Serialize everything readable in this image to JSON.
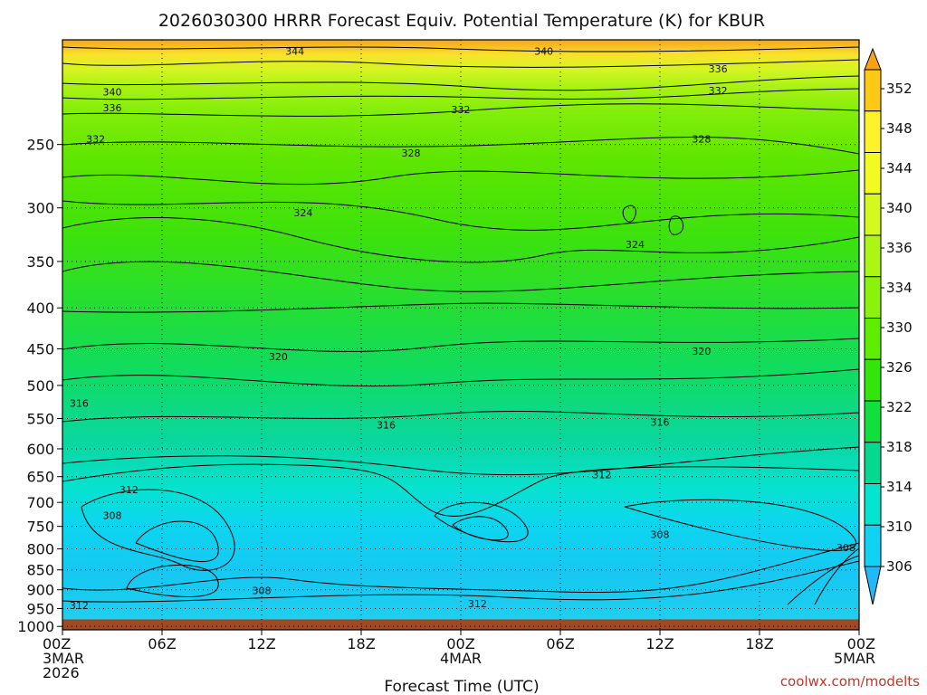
{
  "chart_data": {
    "type": "heatmap",
    "title": "2026030300 HRRR Forecast Equiv. Potential Temperature (K) for KBUR",
    "xlabel": "Forecast Time (UTC)",
    "ylabel": "",
    "credit": "coolwx.com/modelts",
    "x_ticks": [
      {
        "hours": 0,
        "lines": [
          "00Z",
          "3MAR",
          "2026"
        ]
      },
      {
        "hours": 6,
        "lines": [
          "06Z"
        ]
      },
      {
        "hours": 12,
        "lines": [
          "12Z"
        ]
      },
      {
        "hours": 18,
        "lines": [
          "18Z"
        ]
      },
      {
        "hours": 24,
        "lines": [
          "00Z",
          "4MAR"
        ]
      },
      {
        "hours": 30,
        "lines": [
          "06Z"
        ]
      },
      {
        "hours": 36,
        "lines": [
          "12Z"
        ]
      },
      {
        "hours": 42,
        "lines": [
          "18Z"
        ]
      },
      {
        "hours": 48,
        "lines": [
          "00Z",
          "5MAR"
        ]
      }
    ],
    "xlim_hours": [
      0,
      48
    ],
    "y_ticks": [
      "250",
      "300",
      "350",
      "400",
      "450",
      "500",
      "550",
      "600",
      "650",
      "700",
      "750",
      "800",
      "850",
      "900",
      "950",
      "1000"
    ],
    "y_tick_values": [
      250,
      300,
      350,
      400,
      450,
      500,
      550,
      600,
      650,
      700,
      750,
      800,
      850,
      900,
      950,
      1000
    ],
    "ylim_hpa": [
      1010,
      185
    ],
    "ground_level_hpa": 980,
    "colorbar": {
      "labels": [
        "352",
        "348",
        "344",
        "340",
        "336",
        "334",
        "330",
        "326",
        "322",
        "318",
        "314",
        "310",
        "306"
      ],
      "colors": [
        "#f9a218",
        "#fdc816",
        "#fff12b",
        "#f1fb23",
        "#d3f921",
        "#acf515",
        "#8af20b",
        "#5fee00",
        "#32e60b",
        "#11df3b",
        "#05d990",
        "#05e4cf",
        "#0fd2f5",
        "#20bafa"
      ]
    },
    "contour_labels": [
      {
        "text": "344",
        "hours": 14,
        "hpa": 191
      },
      {
        "text": "340",
        "hours": 29,
        "hpa": 191
      },
      {
        "text": "336",
        "hours": 39.5,
        "hpa": 201
      },
      {
        "text": "332",
        "hours": 39.5,
        "hpa": 214
      },
      {
        "text": "340",
        "hours": 3,
        "hpa": 215
      },
      {
        "text": "336",
        "hours": 3,
        "hpa": 225
      },
      {
        "text": "332",
        "hours": 24,
        "hpa": 226
      },
      {
        "text": "332",
        "hours": 2,
        "hpa": 246
      },
      {
        "text": "328",
        "hours": 21,
        "hpa": 256
      },
      {
        "text": "328",
        "hours": 38.5,
        "hpa": 246
      },
      {
        "text": "324",
        "hours": 14.5,
        "hpa": 304
      },
      {
        "text": "324",
        "hours": 34.5,
        "hpa": 333
      },
      {
        "text": "320",
        "hours": 13,
        "hpa": 460
      },
      {
        "text": "320",
        "hours": 38.5,
        "hpa": 453
      },
      {
        "text": "316",
        "hours": 1,
        "hpa": 526
      },
      {
        "text": "316",
        "hours": 19.5,
        "hpa": 560
      },
      {
        "text": "316",
        "hours": 36,
        "hpa": 556
      },
      {
        "text": "312",
        "hours": 4,
        "hpa": 675
      },
      {
        "text": "312",
        "hours": 32.5,
        "hpa": 646
      },
      {
        "text": "308",
        "hours": 3,
        "hpa": 727
      },
      {
        "text": "308",
        "hours": 36,
        "hpa": 767
      },
      {
        "text": "308",
        "hours": 47.2,
        "hpa": 797
      },
      {
        "text": "308",
        "hours": 12,
        "hpa": 902
      },
      {
        "text": "312",
        "hours": 1,
        "hpa": 941
      },
      {
        "text": "312",
        "hours": 25,
        "hpa": 937
      }
    ]
  }
}
